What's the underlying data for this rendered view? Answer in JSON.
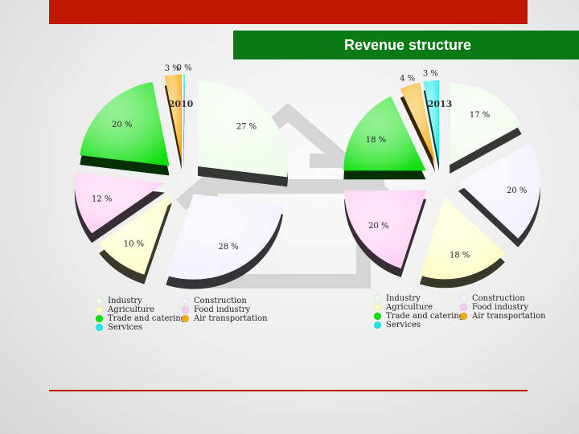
{
  "slide": {
    "title": "Revenue structure",
    "colors": {
      "top_bar": "#c01800",
      "title_bar": "#0a7a14"
    }
  },
  "chart_data": [
    {
      "type": "pie",
      "title": "2010",
      "categories": [
        "Industry",
        "Construction",
        "Agriculture",
        "Food industry",
        "Trade and catering",
        "Air transportation",
        "Services"
      ],
      "values": [
        27,
        28,
        10,
        12,
        20,
        3,
        0
      ],
      "labels": [
        "27 %",
        "28 %",
        "10 %",
        "12 %",
        "20 %",
        "3 %",
        "0 %"
      ],
      "colors": [
        "#eefcea",
        "#f2f1fd",
        "#fdfdc2",
        "#fdc9f2",
        "#11e010",
        "#f4ac0c",
        "#20e8e8"
      ],
      "legend": "bottom"
    },
    {
      "type": "pie",
      "title": "2013",
      "categories": [
        "Industry",
        "Construction",
        "Agriculture",
        "Food industry",
        "Trade and catering",
        "Air transportation",
        "Services"
      ],
      "values": [
        17,
        20,
        18,
        20,
        18,
        4,
        3
      ],
      "labels": [
        "17 %",
        "20 %",
        "18 %",
        "20 %",
        "18 %",
        "4 %",
        "3 %"
      ],
      "colors": [
        "#eefcea",
        "#f2f1fd",
        "#fdfdc2",
        "#fdc9f2",
        "#11e010",
        "#f4ac0c",
        "#20e8e8"
      ],
      "legend": "bottom"
    }
  ],
  "legend_items": [
    {
      "label": "Industry",
      "color": "#eefcea"
    },
    {
      "label": "Construction",
      "color": "#f2f1fd"
    },
    {
      "label": "Agriculture",
      "color": "#fdfdc2"
    },
    {
      "label": "Food industry",
      "color": "#fdc9f2"
    },
    {
      "label": "Trade and catering",
      "color": "#11e010"
    },
    {
      "label": "Air transportation",
      "color": "#f4ac0c"
    },
    {
      "label": "Services",
      "color": "#20e8e8"
    }
  ]
}
